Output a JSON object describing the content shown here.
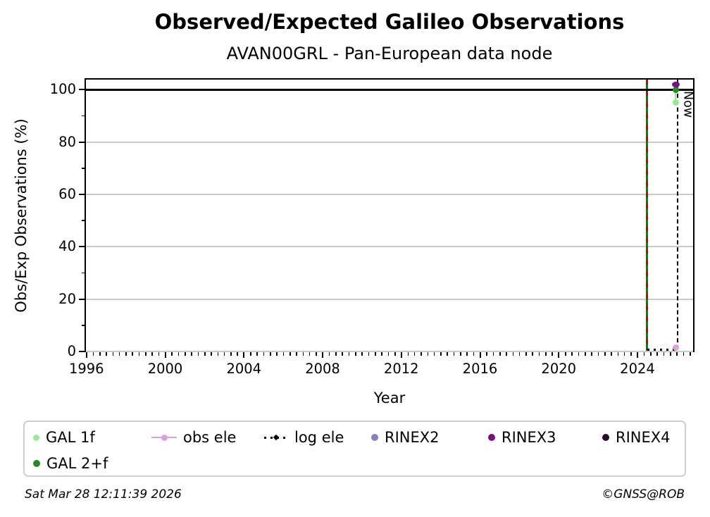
{
  "header": {
    "title": "Observed/Expected Galileo Observations",
    "subtitle": "AVAN00GRL - Pan-European data node"
  },
  "footer": {
    "timestamp": "Sat Mar 28 12:11:39 2026",
    "copyright": "©GNSS@ROB"
  },
  "chart_data": {
    "type": "scatter",
    "title": "Observed/Expected Galileo Observations",
    "subtitle": "AVAN00GRL - Pan-European data node",
    "xlabel": "Year",
    "ylabel": "Obs/Exp Observations (%)",
    "xlim": [
      1995.9,
      2026.9
    ],
    "ylim": [
      -0.3,
      104.4
    ],
    "xticks": [
      1996,
      2000,
      2004,
      2008,
      2012,
      2016,
      2020,
      2024
    ],
    "yticks": [
      0,
      20,
      40,
      60,
      80,
      100
    ],
    "x_minor_step_years": 0.3333,
    "y_minor_step": 10,
    "grid": true,
    "grid_color": "#c9c9c9",
    "reference_line": {
      "y": 100,
      "color": "#000000"
    },
    "vlines": [
      {
        "name": "event-line",
        "x": 2024.5,
        "style": "solid-with-dashes",
        "solid_color": "#008000",
        "dash_color": "#d40000",
        "label": ""
      },
      {
        "name": "now-line",
        "x": 2026.05,
        "style": "dashed",
        "color": "#000000",
        "label": "Now"
      }
    ],
    "series": [
      {
        "name": "GAL 1f",
        "color": "#90ee90",
        "marker": "dot",
        "points": [
          {
            "x": 2025.95,
            "y": 95
          }
        ]
      },
      {
        "name": "GAL 2+f",
        "color": "#228b22",
        "marker": "dot",
        "points": [
          {
            "x": 2025.95,
            "y": 100
          }
        ]
      },
      {
        "name": "obs ele",
        "color": "#dda0dd",
        "marker": "line-dot",
        "points": [
          {
            "x": 2025.95,
            "y": 1.5
          }
        ]
      },
      {
        "name": "log ele",
        "color": "#000000",
        "marker": "dotted-line",
        "line": {
          "x1": 2024.5,
          "x2": 2026.05,
          "y": 0.9
        },
        "points": []
      },
      {
        "name": "RINEX2",
        "color": "#8a7dc8",
        "marker": "dot",
        "points": []
      },
      {
        "name": "RINEX3",
        "color": "#7c0d7c",
        "marker": "ellipse",
        "points": [
          {
            "x": 2025.95,
            "y": 102
          }
        ]
      },
      {
        "name": "RINEX4",
        "color": "#2d0a33",
        "marker": "dot",
        "points": []
      }
    ],
    "connector": {
      "x": 2025.95,
      "y_from": 95,
      "y_to": 100,
      "color": "#90ee90"
    },
    "legend_position": "bottom"
  },
  "legend": {
    "items": [
      {
        "label": "GAL 1f",
        "color": "#90ee90",
        "marker": "dot"
      },
      {
        "label": "obs ele",
        "color": "#dda0dd",
        "marker": "line-dot"
      },
      {
        "label": "log ele",
        "color": "#000000",
        "marker": "dotted-line"
      },
      {
        "label": "RINEX2",
        "color": "#8a7dc8",
        "marker": "dot"
      },
      {
        "label": "RINEX3",
        "color": "#7c0d7c",
        "marker": "dot"
      },
      {
        "label": "RINEX4",
        "color": "#2d0a33",
        "marker": "dot"
      },
      {
        "label": "GAL 2+f",
        "color": "#228b22",
        "marker": "dot"
      }
    ]
  }
}
